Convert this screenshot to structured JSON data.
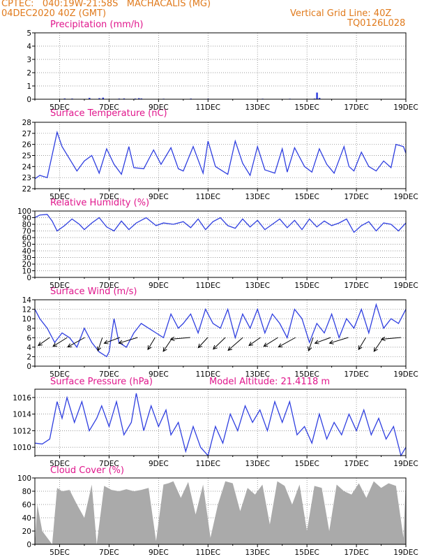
{
  "header": {
    "line1": "CPTEC:   040:19W-21:58S   MACHACALIS (MG)",
    "line2": "04DEC2020 40Z (GMT)",
    "right1": "Vertical Grid Line: 40Z",
    "right2": "TQ0126L028"
  },
  "colors": {
    "header": "#e07a1c",
    "title": "#e0168c",
    "line": "#2f3fe0",
    "cloud": "#aaaaaa"
  },
  "chart_data": [
    {
      "type": "bar",
      "title": "Precipitation (mm/h)",
      "x_tick_labels": [
        "5DEC",
        "7DEC",
        "9DEC",
        "11DEC",
        "13DEC",
        "15DEC",
        "17DEC",
        "19DEC"
      ],
      "ylim": [
        0,
        5
      ],
      "yticks": [
        0,
        1,
        2,
        3,
        4,
        5
      ],
      "grid": true,
      "points": [
        [
          1.2,
          0.06
        ],
        [
          1.5,
          0.05
        ],
        [
          2.2,
          0.1
        ],
        [
          2.6,
          0.08
        ],
        [
          2.75,
          0.12
        ],
        [
          3.4,
          0.05
        ],
        [
          3.6,
          0.06
        ],
        [
          4.05,
          0.05
        ],
        [
          4.2,
          0.08
        ],
        [
          4.3,
          0.06
        ],
        [
          5.2,
          0.04
        ],
        [
          6.3,
          0.05
        ],
        [
          7.0,
          0.04
        ],
        [
          9.2,
          0.04
        ],
        [
          10.3,
          0.04
        ],
        [
          11.3,
          0.05
        ],
        [
          11.4,
          0.5
        ],
        [
          11.5,
          0.1
        ]
      ]
    },
    {
      "type": "line",
      "title": "Surface Temperature (nC)",
      "x_tick_labels": [
        "5DEC",
        "7DEC",
        "9DEC",
        "11DEC",
        "13DEC",
        "15DEC",
        "17DEC",
        "19DEC"
      ],
      "ylim": [
        22,
        28
      ],
      "yticks": [
        22,
        23,
        24,
        25,
        26,
        27,
        28
      ],
      "grid": true,
      "x": [
        0.0,
        0.2,
        0.5,
        0.9,
        1.1,
        1.4,
        1.7,
        2.0,
        2.3,
        2.6,
        2.9,
        3.2,
        3.5,
        3.8,
        4.0,
        4.4,
        4.8,
        5.1,
        5.5,
        5.8,
        6.0,
        6.4,
        6.8,
        7.0,
        7.3,
        7.8,
        8.1,
        8.4,
        8.7,
        9.0,
        9.3,
        9.7,
        10.0,
        10.2,
        10.5,
        10.9,
        11.2,
        11.5,
        11.8,
        12.1,
        12.5,
        12.7,
        12.9,
        13.2,
        13.5,
        13.8,
        14.1,
        14.4,
        14.6,
        14.9,
        15.0
      ],
      "values": [
        22.9,
        23.2,
        23.0,
        27.1,
        25.8,
        24.7,
        23.6,
        24.5,
        25.0,
        23.4,
        25.6,
        24.2,
        23.3,
        25.8,
        23.9,
        23.8,
        25.5,
        24.2,
        25.7,
        23.8,
        23.6,
        25.8,
        23.4,
        26.3,
        24.0,
        23.3,
        26.3,
        24.3,
        23.2,
        25.8,
        23.7,
        23.4,
        25.6,
        23.5,
        25.7,
        24.0,
        23.5,
        25.6,
        24.2,
        23.4,
        25.8,
        24.0,
        23.6,
        25.3,
        24.0,
        23.6,
        24.5,
        23.9,
        26.0,
        25.8,
        25.2
      ],
      "series": [
        {
          "name": ""
        }
      ]
    },
    {
      "type": "line",
      "title": "Relative Humidity (%)",
      "x_tick_labels": [
        "5DEC",
        "7DEC",
        "9DEC",
        "11DEC",
        "13DEC",
        "15DEC",
        "17DEC",
        "19DEC"
      ],
      "ylim": [
        0,
        100
      ],
      "yticks": [
        0,
        10,
        20,
        30,
        40,
        50,
        60,
        70,
        80,
        90,
        100
      ],
      "grid": true,
      "x": [
        0.0,
        0.2,
        0.5,
        0.7,
        0.9,
        1.2,
        1.5,
        1.8,
        2.0,
        2.3,
        2.6,
        2.9,
        3.2,
        3.5,
        3.8,
        4.1,
        4.5,
        4.9,
        5.2,
        5.6,
        6.0,
        6.3,
        6.6,
        6.9,
        7.2,
        7.5,
        7.8,
        8.1,
        8.4,
        8.7,
        9.0,
        9.3,
        9.6,
        9.9,
        10.2,
        10.5,
        10.8,
        11.1,
        11.4,
        11.7,
        12.0,
        12.3,
        12.6,
        12.9,
        13.2,
        13.5,
        13.8,
        14.1,
        14.4,
        14.7,
        15.0
      ],
      "values": [
        90,
        94,
        95,
        85,
        70,
        78,
        88,
        80,
        72,
        82,
        90,
        76,
        70,
        85,
        72,
        82,
        90,
        78,
        82,
        80,
        84,
        75,
        88,
        72,
        84,
        90,
        78,
        74,
        88,
        76,
        86,
        72,
        80,
        88,
        75,
        86,
        72,
        88,
        76,
        85,
        78,
        82,
        88,
        68,
        78,
        84,
        70,
        82,
        80,
        70,
        82
      ],
      "series": [
        {
          "name": ""
        }
      ]
    },
    {
      "type": "line",
      "title": "Surface Wind (m/s)",
      "x_tick_labels": [
        "5DEC",
        "7DEC",
        "9DEC",
        "11DEC",
        "13DEC",
        "15DEC",
        "17DEC",
        "19DEC"
      ],
      "ylim": [
        0,
        14
      ],
      "yticks": [
        0,
        2,
        4,
        6,
        8,
        10,
        12,
        14
      ],
      "grid": true,
      "x": [
        0.0,
        0.2,
        0.5,
        0.8,
        1.1,
        1.4,
        1.7,
        2.0,
        2.3,
        2.6,
        2.9,
        3.0,
        3.2,
        3.4,
        3.7,
        4.0,
        4.3,
        4.6,
        4.9,
        5.2,
        5.5,
        5.8,
        6.0,
        6.3,
        6.6,
        6.9,
        7.2,
        7.5,
        7.8,
        8.1,
        8.4,
        8.7,
        9.0,
        9.3,
        9.6,
        9.9,
        10.2,
        10.5,
        10.8,
        11.1,
        11.4,
        11.7,
        12.0,
        12.3,
        12.6,
        12.9,
        13.2,
        13.5,
        13.8,
        14.1,
        14.4,
        14.7,
        15.0
      ],
      "values": [
        12,
        10,
        8,
        5,
        7,
        6,
        4,
        8,
        5,
        3,
        2,
        3,
        10,
        5,
        4,
        7,
        9,
        8,
        7,
        6,
        11,
        8,
        9,
        11,
        7,
        12,
        9,
        8,
        12,
        6,
        11,
        8,
        12,
        7,
        11,
        9,
        6,
        12,
        10,
        5,
        9,
        7,
        11,
        6,
        10,
        8,
        12,
        7,
        13,
        8,
        10,
        9,
        12
      ],
      "series": [
        {
          "name": ""
        }
      ],
      "arrow_label_count": 21
    },
    {
      "type": "line",
      "title": "Surface Pressure (hPa)",
      "annotation": "Model Altitude: 21.4118 m",
      "x_tick_labels": [
        "5DEC",
        "7DEC",
        "9DEC",
        "11DEC",
        "13DEC",
        "15DEC",
        "17DEC",
        "19DEC"
      ],
      "ylim": [
        1009,
        1017
      ],
      "yticks": [
        1010,
        1012,
        1014,
        1016
      ],
      "grid": true,
      "x": [
        0.0,
        0.3,
        0.6,
        0.9,
        1.1,
        1.3,
        1.6,
        1.9,
        2.2,
        2.5,
        2.7,
        3.0,
        3.3,
        3.6,
        3.9,
        4.1,
        4.4,
        4.7,
        5.0,
        5.3,
        5.5,
        5.8,
        6.1,
        6.4,
        6.7,
        7.0,
        7.3,
        7.6,
        7.9,
        8.2,
        8.5,
        8.8,
        9.1,
        9.4,
        9.7,
        10.0,
        10.3,
        10.6,
        10.9,
        11.2,
        11.5,
        11.8,
        12.1,
        12.4,
        12.7,
        13.0,
        13.3,
        13.6,
        13.9,
        14.2,
        14.5,
        14.8,
        15.0
      ],
      "values": [
        1010.5,
        1010.4,
        1011.0,
        1015.5,
        1013.5,
        1016.0,
        1013.0,
        1015.5,
        1012.0,
        1013.5,
        1015.0,
        1012.5,
        1015.5,
        1011.5,
        1013.0,
        1016.5,
        1012.0,
        1015.0,
        1012.5,
        1014.5,
        1011.5,
        1013.0,
        1009.5,
        1012.5,
        1010.0,
        1009.0,
        1012.5,
        1010.5,
        1014.0,
        1012.0,
        1015.0,
        1013.0,
        1014.5,
        1012.0,
        1015.5,
        1013.0,
        1015.5,
        1011.5,
        1012.5,
        1010.5,
        1014.0,
        1011.0,
        1013.0,
        1011.5,
        1014.0,
        1012.0,
        1014.5,
        1011.5,
        1013.5,
        1011.0,
        1012.5,
        1009.0,
        1010.0
      ],
      "series": [
        {
          "name": ""
        }
      ]
    },
    {
      "type": "area",
      "title": "Cloud Cover (%)",
      "x_tick_labels": [
        "5DEC",
        "7DEC",
        "9DEC",
        "11DEC",
        "13DEC",
        "15DEC",
        "17DEC",
        "19DEC"
      ],
      "ylim": [
        0,
        100
      ],
      "yticks": [
        0,
        20,
        40,
        60,
        80,
        100
      ],
      "grid": true,
      "x": [
        0.0,
        0.1,
        0.3,
        0.5,
        0.7,
        0.9,
        1.1,
        1.4,
        1.7,
        2.0,
        2.3,
        2.5,
        2.8,
        3.1,
        3.4,
        3.7,
        4.0,
        4.3,
        4.6,
        4.9,
        5.2,
        5.4,
        5.6,
        5.9,
        6.2,
        6.5,
        6.8,
        7.1,
        7.4,
        7.7,
        8.0,
        8.3,
        8.6,
        8.9,
        9.2,
        9.5,
        9.8,
        10.1,
        10.4,
        10.7,
        11.0,
        11.3,
        11.6,
        11.9,
        12.2,
        12.5,
        12.8,
        13.1,
        13.4,
        13.7,
        14.0,
        14.3,
        14.6,
        14.9,
        15.0
      ],
      "values": [
        0,
        60,
        20,
        10,
        0,
        85,
        80,
        82,
        60,
        40,
        90,
        0,
        88,
        82,
        80,
        83,
        80,
        82,
        85,
        5,
        90,
        92,
        95,
        70,
        94,
        45,
        90,
        10,
        60,
        95,
        92,
        50,
        85,
        75,
        90,
        30,
        95,
        88,
        60,
        90,
        20,
        88,
        85,
        20,
        90,
        80,
        75,
        92,
        70,
        95,
        85,
        92,
        88,
        10,
        95
      ],
      "series": [
        {
          "name": ""
        }
      ]
    }
  ]
}
